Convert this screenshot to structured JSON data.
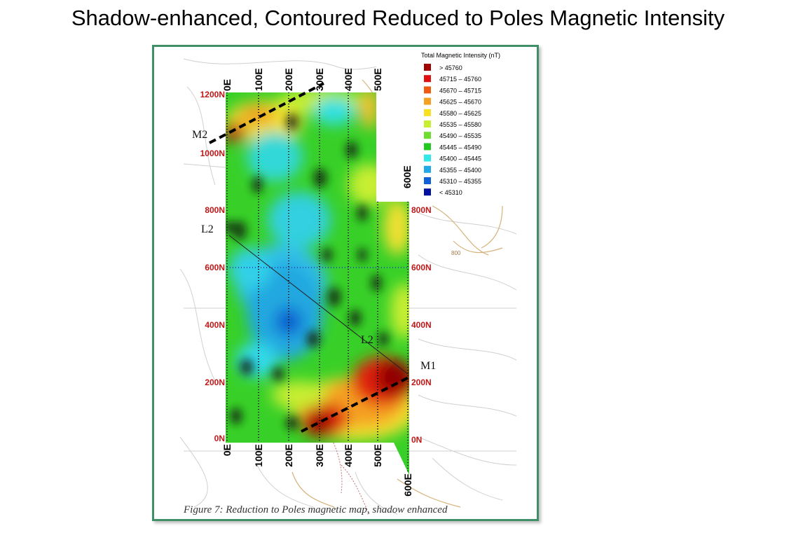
{
  "title": "Shadow-enhanced, Contoured Reduced to Poles Magnetic Intensity",
  "caption": "Figure 7: Reduction to Poles magnetic map, shadow enhanced",
  "legend": {
    "title": "Total Magnetic Intensity (nT)",
    "items": [
      {
        "label": "> 45760",
        "color": "#a00000"
      },
      {
        "label": "45715 – 45760",
        "color": "#e01010"
      },
      {
        "label": "45670 – 45715",
        "color": "#ee5a10"
      },
      {
        "label": "45625 – 45670",
        "color": "#f5a020"
      },
      {
        "label": "45580 – 45625",
        "color": "#f8e020"
      },
      {
        "label": "45535 – 45580",
        "color": "#c8ee30"
      },
      {
        "label": "45490 – 45535",
        "color": "#70dc30"
      },
      {
        "label": "45445 – 45490",
        "color": "#20c820"
      },
      {
        "label": "45400 – 45445",
        "color": "#30e8e8"
      },
      {
        "label": "45355 – 45400",
        "color": "#20a8e8"
      },
      {
        "label": "45310 – 45355",
        "color": "#1060d8"
      },
      {
        "label": "< 45310",
        "color": "#0010a0"
      }
    ]
  },
  "grid": {
    "northings_left": [
      "1200N",
      "1000N",
      "800N",
      "600N",
      "400N",
      "200N",
      "0N"
    ],
    "northings_right": [
      "800N",
      "600N",
      "400N",
      "200N",
      "0N"
    ],
    "eastings_top": [
      "0E",
      "100E",
      "200E",
      "300E",
      "400E",
      "500E"
    ],
    "eastings_bottom": [
      "0E",
      "100E",
      "200E",
      "300E",
      "400E",
      "500E"
    ],
    "easting_600_top": "600E",
    "easting_600_bottom": "600E"
  },
  "lines": {
    "m1": "M1",
    "m2": "M2",
    "l2_start": "L2",
    "l2_end": "L2"
  },
  "contour_label": "800"
}
